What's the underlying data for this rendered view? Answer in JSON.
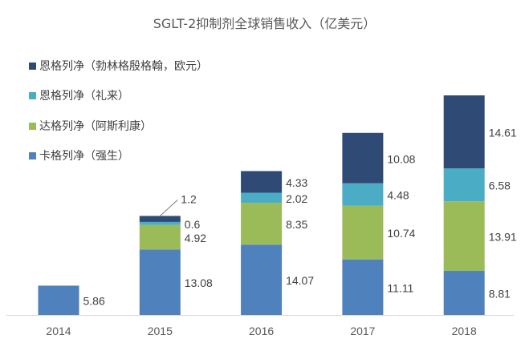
{
  "chart_data": {
    "type": "bar",
    "stacked": true,
    "title": "SGLT-2抑制剂全球销售收入（亿美元）",
    "categories": [
      "2014",
      "2015",
      "2016",
      "2017",
      "2018"
    ],
    "series": [
      {
        "name": "卡格列净（强生）",
        "color": "#4f81bd",
        "values": [
          5.86,
          13.08,
          14.07,
          11.11,
          8.81
        ]
      },
      {
        "name": "达格列净（阿斯利康）",
        "color": "#9bbb59",
        "values": [
          null,
          4.92,
          8.35,
          10.74,
          13.91
        ]
      },
      {
        "name": "恩格列净（礼来）",
        "color": "#4bacc6",
        "values": [
          null,
          0.6,
          2.02,
          4.48,
          6.58
        ]
      },
      {
        "name": "恩格列净（勃林格殷格翰，欧元）",
        "color": "#2f4b75",
        "values": [
          null,
          1.2,
          4.33,
          10.08,
          14.61
        ]
      }
    ],
    "legend_position": "top-left",
    "grid": false,
    "y_axis_visible": false,
    "ylim": [
      0,
      44
    ]
  }
}
